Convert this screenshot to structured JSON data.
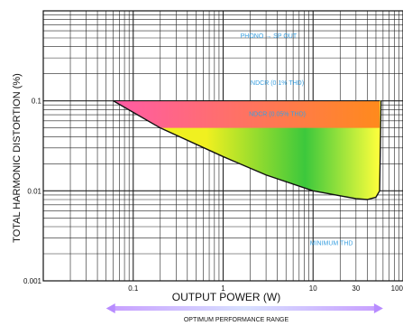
{
  "chart_data": {
    "type": "area",
    "title": "",
    "xlabel": "OUTPUT POWER (W)",
    "ylabel": "TOTAL HARMONIC DISTORTION (%)",
    "x_scale": "log",
    "y_scale": "log",
    "xlim": [
      0.01,
      100
    ],
    "ylim": [
      0.001,
      1
    ],
    "grid": true,
    "x_ticks": [
      {
        "value": 0.1,
        "label": "0.1"
      },
      {
        "value": 1,
        "label": "1"
      },
      {
        "value": 10,
        "label": "10"
      },
      {
        "value": 30,
        "label": "30"
      },
      {
        "value": 100,
        "label": "100"
      }
    ],
    "y_ticks": [
      {
        "value": 0.1,
        "label": "0.1"
      },
      {
        "value": 0.01,
        "label": "0.01"
      },
      {
        "value": 0.001,
        "label": "0.001"
      }
    ],
    "upper_bound": {
      "x": [
        0.06,
        55
      ],
      "y": [
        0.1,
        0.1
      ]
    },
    "minimum_thd_curve": {
      "x": [
        0.06,
        0.2,
        1,
        3,
        10,
        20,
        30,
        40,
        50,
        55,
        57
      ],
      "y": [
        0.1,
        0.05,
        0.024,
        0.015,
        0.01,
        0.0088,
        0.0082,
        0.008,
        0.0085,
        0.01,
        0.1
      ]
    },
    "bands": [
      {
        "name": "NDCR (0.1% THD)",
        "y": [
          0.05,
          0.1
        ],
        "color_from": "#ff5ba6",
        "color_to": "#ff8a1c"
      },
      {
        "name": "NDCR (0.05% THD)",
        "y_top": 0.05,
        "color_from": "#f0f020",
        "color_mid": "#3cc83c",
        "color_to": "#ffff3c"
      }
    ],
    "annotations": [
      {
        "text": "PHONO → SP OUT",
        "x": 3.2,
        "y": 0.5
      },
      {
        "text": "NDCR (0.1% THD)",
        "x": 4,
        "y": 0.15
      },
      {
        "text": "NDCR (0.05% THD)",
        "x": 4,
        "y": 0.068
      },
      {
        "text": "MINIMUM THD",
        "x": 16,
        "y": 0.0025
      }
    ],
    "range_arrow": {
      "label": "OPTIMUM PERFORMANCE RANGE",
      "from": 0.05,
      "to": 60
    }
  }
}
